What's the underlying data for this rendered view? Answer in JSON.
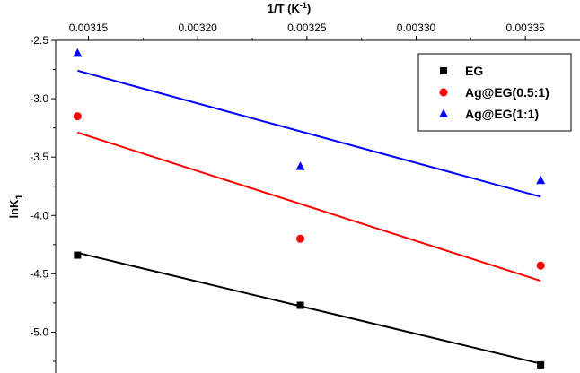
{
  "chart_data": {
    "type": "scatter",
    "title": "",
    "xlabel": "1/T (K",
    "xlabel_sup": "-1",
    "xlabel_close": ")",
    "ylabel": "lnK",
    "ylabel_sub": "1",
    "x_axis_position": "top",
    "xlim": [
      0.003135,
      0.003375
    ],
    "ylim": [
      -5.35,
      -2.5
    ],
    "xticks": [
      0.00315,
      0.0032,
      0.00325,
      0.0033,
      0.00335
    ],
    "xtick_labels": [
      "0.00315",
      "0.00320",
      "0.00325",
      "0.00330",
      "0.00335"
    ],
    "yticks": [
      -2.5,
      -3.0,
      -3.5,
      -4.0,
      -4.5,
      -5.0
    ],
    "ytick_labels": [
      "-2.5",
      "-3.0",
      "-3.5",
      "-4.0",
      "-4.5",
      "-5.0"
    ],
    "grid": false,
    "legend_position": "top-right",
    "series": [
      {
        "name": "EG",
        "color": "#000000",
        "marker": "square",
        "x": [
          0.003145,
          0.003247,
          0.003357
        ],
        "y": [
          -4.34,
          -4.77,
          -5.28
        ],
        "fit": {
          "x": [
            0.003145,
            0.003357
          ],
          "y": [
            -4.32,
            -5.27
          ]
        }
      },
      {
        "name": "Ag@EG(0.5:1)",
        "color": "#ff0000",
        "marker": "circle",
        "x": [
          0.003145,
          0.003247,
          0.003357
        ],
        "y": [
          -3.15,
          -4.2,
          -4.43
        ],
        "fit": {
          "x": [
            0.003145,
            0.003357
          ],
          "y": [
            -3.29,
            -4.56
          ]
        }
      },
      {
        "name": "Ag@EG(1:1)",
        "color": "#0000ff",
        "marker": "triangle",
        "x": [
          0.003145,
          0.003247,
          0.003357
        ],
        "y": [
          -2.61,
          -3.58,
          -3.7
        ],
        "fit": {
          "x": [
            0.003145,
            0.003357
          ],
          "y": [
            -2.76,
            -3.84
          ]
        }
      }
    ]
  }
}
